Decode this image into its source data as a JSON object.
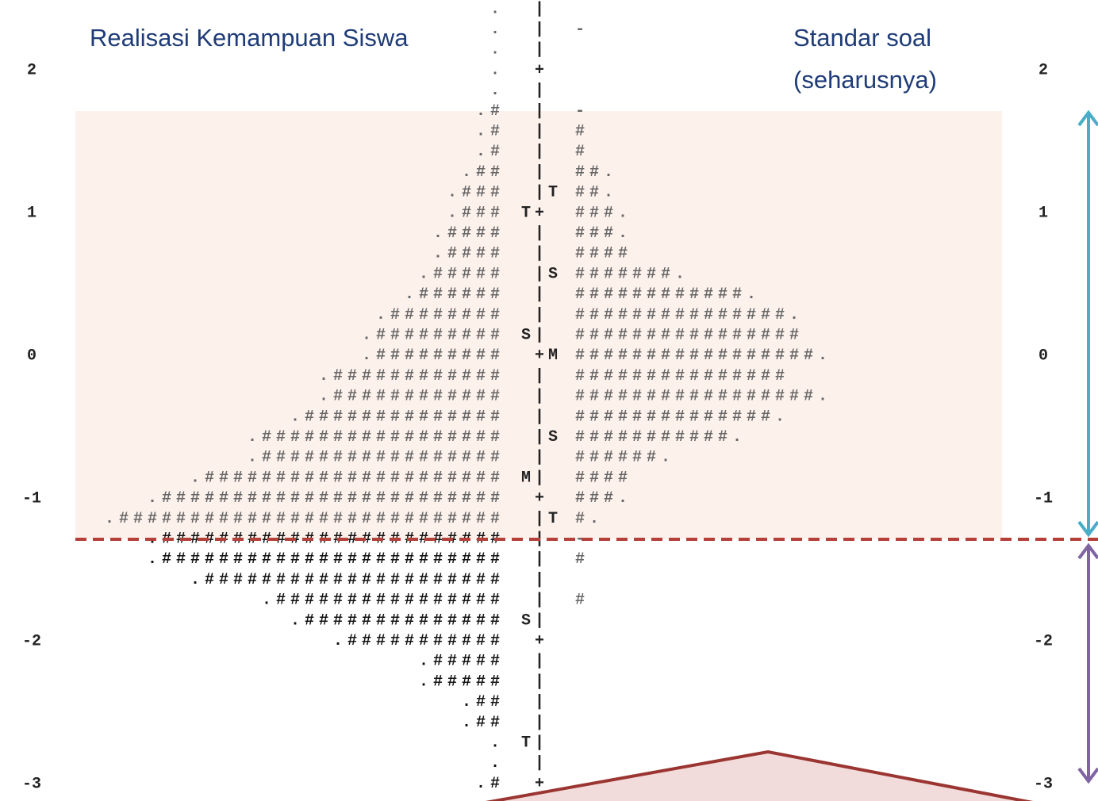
{
  "title_left": "Realisasi Kemampuan Siswa",
  "title_right": [
    "Standar soal",
    "(seharusnya)"
  ],
  "axis_labels": [
    "2",
    "1",
    "0",
    "-1",
    "-2",
    "-3"
  ],
  "rows": [
    {
      "left": ".",
      "mid": "|"
    },
    {
      "left": ".",
      "mid": "|",
      "right": "-"
    },
    {
      "left": ".",
      "mid": "|"
    },
    {
      "left": ".",
      "mid": "+"
    },
    {
      "left": ".",
      "mid": "|"
    },
    {
      "left": ".#",
      "mid": "|",
      "right": "-"
    },
    {
      "left": ".#",
      "mid": "|",
      "right": "#"
    },
    {
      "left": ".#",
      "mid": "|",
      "right": "#"
    },
    {
      "left": ".##",
      "mid": "|",
      "right": "##."
    },
    {
      "left": ".###",
      "mid": "|T",
      "right": "##."
    },
    {
      "left": ".###",
      "mid": "T+",
      "right": "###."
    },
    {
      "left": ".####",
      "mid": "|",
      "right": "###."
    },
    {
      "left": ".####",
      "mid": "|",
      "right": "####"
    },
    {
      "left": ".#####",
      "mid": "|S",
      "right": "#######."
    },
    {
      "left": ".######",
      "mid": "|",
      "right": "############."
    },
    {
      "left": ".########",
      "mid": "|",
      "right": "###############."
    },
    {
      "left": ".#########",
      "mid": "S|",
      "right": "################"
    },
    {
      "left": ".#########",
      "mid": "+M",
      "right": "#################."
    },
    {
      "left": ".############",
      "mid": "|",
      "right": "###############"
    },
    {
      "left": ".############",
      "mid": "|",
      "right": "#################."
    },
    {
      "left": ".##############",
      "mid": "|",
      "right": "##############."
    },
    {
      "left": ".#################",
      "mid": "|S",
      "right": "###########."
    },
    {
      "left": ".#################",
      "mid": "|",
      "right": "######."
    },
    {
      "left": ".#####################",
      "mid": "M|",
      "right": "####"
    },
    {
      "left": ".########################",
      "mid": "+",
      "right": "###."
    },
    {
      "left": ".###########################",
      "mid": "|T",
      "right": "#."
    },
    {
      "left": ".########################",
      "mid": "|",
      "right": "-"
    },
    {
      "left": ".########################",
      "mid": "|",
      "right": "#"
    },
    {
      "left": ".#####################",
      "mid": "|"
    },
    {
      "left": ".################",
      "mid": "|",
      "right": "#"
    },
    {
      "left": ".##############",
      "mid": "S|"
    },
    {
      "left": ".###########",
      "mid": "+"
    },
    {
      "left": ".#####",
      "mid": "|"
    },
    {
      "left": ".#####",
      "mid": "|"
    },
    {
      "left": ".##",
      "mid": "|"
    },
    {
      "left": ".##",
      "mid": "|"
    },
    {
      "left": ".",
      "mid": "T|"
    },
    {
      "left": ".",
      "mid": "|"
    },
    {
      "left": ".#",
      "mid": "+"
    }
  ]
}
